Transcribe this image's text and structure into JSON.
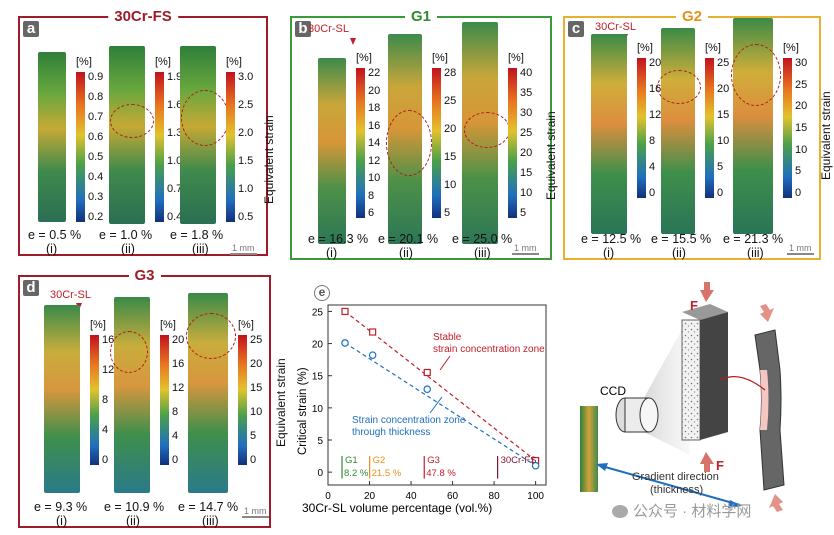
{
  "colors": {
    "red": "#c0202a",
    "green": "#3a9a3a",
    "orange": "#e8a317",
    "blue": "#1f6fbf",
    "g1": "#2e8b2e",
    "g2": "#e8901a",
    "g3": "#c0202a",
    "dark": "#555"
  },
  "panels": {
    "a": {
      "letter": "a",
      "title": "30Cr-FS",
      "unit": "[%]",
      "sublabel": "",
      "strips": [
        {
          "bar_ticks": [
            "0.9",
            "0.8",
            "0.7",
            "0.6",
            "0.5",
            "0.4",
            "0.3",
            "0.2"
          ],
          "e": "e = 0.5 %",
          "idx": "(i)"
        },
        {
          "bar_ticks": [
            "1.9",
            "1.6",
            "1.3",
            "1.0",
            "0.7",
            "0.4"
          ],
          "e": "e = 1.0 %",
          "idx": "(ii)"
        },
        {
          "bar_ticks": [
            "3.0",
            "2.5",
            "2.0",
            "1.5",
            "1.0",
            "0.5"
          ],
          "e": "e = 1.8 %",
          "idx": "(iii)"
        }
      ],
      "ylabel": "Equivalent strain",
      "scale": "1 mm"
    },
    "b": {
      "letter": "b",
      "title": "G1",
      "unit": "[%]",
      "sublabel": "30Cr-SL",
      "strips": [
        {
          "bar_ticks": [
            "22",
            "20",
            "18",
            "16",
            "14",
            "12",
            "10",
            "8",
            "6"
          ],
          "e": "e = 16.3 %",
          "idx": "(i)"
        },
        {
          "bar_ticks": [
            "28",
            "25",
            "20",
            "15",
            "10",
            "5"
          ],
          "e": "e = 20.1 %",
          "idx": "(ii)"
        },
        {
          "bar_ticks": [
            "40",
            "35",
            "30",
            "25",
            "20",
            "15",
            "10",
            "5"
          ],
          "e": "e = 25.0 %",
          "idx": "(iii)"
        }
      ],
      "ylabel": "Equivalent strain",
      "scale": "1 mm"
    },
    "c": {
      "letter": "c",
      "title": "G2",
      "unit": "[%]",
      "sublabel": "30Cr-SL",
      "strips": [
        {
          "bar_ticks": [
            "20",
            "16",
            "12",
            "8",
            "4",
            "0"
          ],
          "e": "e = 12.5 %",
          "idx": "(i)"
        },
        {
          "bar_ticks": [
            "25",
            "20",
            "15",
            "10",
            "5",
            "0"
          ],
          "e": "e = 15.5 %",
          "idx": "(ii)"
        },
        {
          "bar_ticks": [
            "30",
            "25",
            "20",
            "15",
            "10",
            "5",
            "0"
          ],
          "e": "e = 21.3 %",
          "idx": "(iii)"
        }
      ],
      "ylabel": "Equivalent strain",
      "scale": "1 mm"
    },
    "d": {
      "letter": "d",
      "title": "G3",
      "unit": "[%]",
      "sublabel": "30Cr-SL",
      "strips": [
        {
          "bar_ticks": [
            "16",
            "12",
            "8",
            "4",
            "0"
          ],
          "e": "e = 9.3 %",
          "idx": "(i)"
        },
        {
          "bar_ticks": [
            "20",
            "16",
            "12",
            "8",
            "4",
            "0"
          ],
          "e": "e = 10.9 %",
          "idx": "(ii)"
        },
        {
          "bar_ticks": [
            "25",
            "20",
            "15",
            "10",
            "5",
            "0"
          ],
          "e": "e = 14.7 %",
          "idx": "(iii)"
        }
      ],
      "ylabel": "Equivalent strain",
      "scale": "1 mm"
    },
    "e": {
      "letter": "e"
    }
  },
  "chart_data": {
    "type": "scatter",
    "xlabel": "30Cr-SL volume percentage (vol.%)",
    "ylabel": "Critical strain (%)",
    "xlim": [
      0,
      105
    ],
    "ylim": [
      -2,
      26
    ],
    "xticks": [
      0,
      20,
      40,
      60,
      80,
      100
    ],
    "yticks": [
      0,
      5,
      10,
      15,
      20,
      25
    ],
    "series": [
      {
        "color": "#c0202a",
        "marker": "square",
        "x": [
          8.2,
          21.5,
          47.8,
          100
        ],
        "y": [
          25.0,
          21.8,
          15.5,
          1.8
        ]
      },
      {
        "color": "#1f6fbf",
        "marker": "circle",
        "x": [
          8.2,
          21.5,
          47.8,
          100
        ],
        "y": [
          20.1,
          18.2,
          12.9,
          1.0
        ]
      }
    ],
    "annotations": [
      {
        "text": "Stable",
        "color": "#c0202a"
      },
      {
        "text": "strain concentration zone",
        "color": "#c0202a"
      },
      {
        "text": "Strain concentration zone",
        "color": "#1f6fbf"
      },
      {
        "text": "through thickness",
        "color": "#1f6fbf"
      }
    ],
    "groups": [
      {
        "name": "G1",
        "value": "8.2 %",
        "x": 8.2,
        "color": "#2e8b2e"
      },
      {
        "name": "G2",
        "value": "21.5 %",
        "x": 21.5,
        "color": "#e8901a"
      },
      {
        "name": "G3",
        "value": "47.8 %",
        "x": 47.8,
        "color": "#c0202a"
      },
      {
        "name": "30Cr-FS",
        "value": "",
        "x": 100,
        "color": "#7a1530"
      }
    ]
  },
  "schematic": {
    "force_label": "F",
    "ccd_label": "CCD",
    "gradient_label": "Gradient direction",
    "thickness_label": "(thickness)"
  },
  "watermark": "公众号 · 材料学网"
}
